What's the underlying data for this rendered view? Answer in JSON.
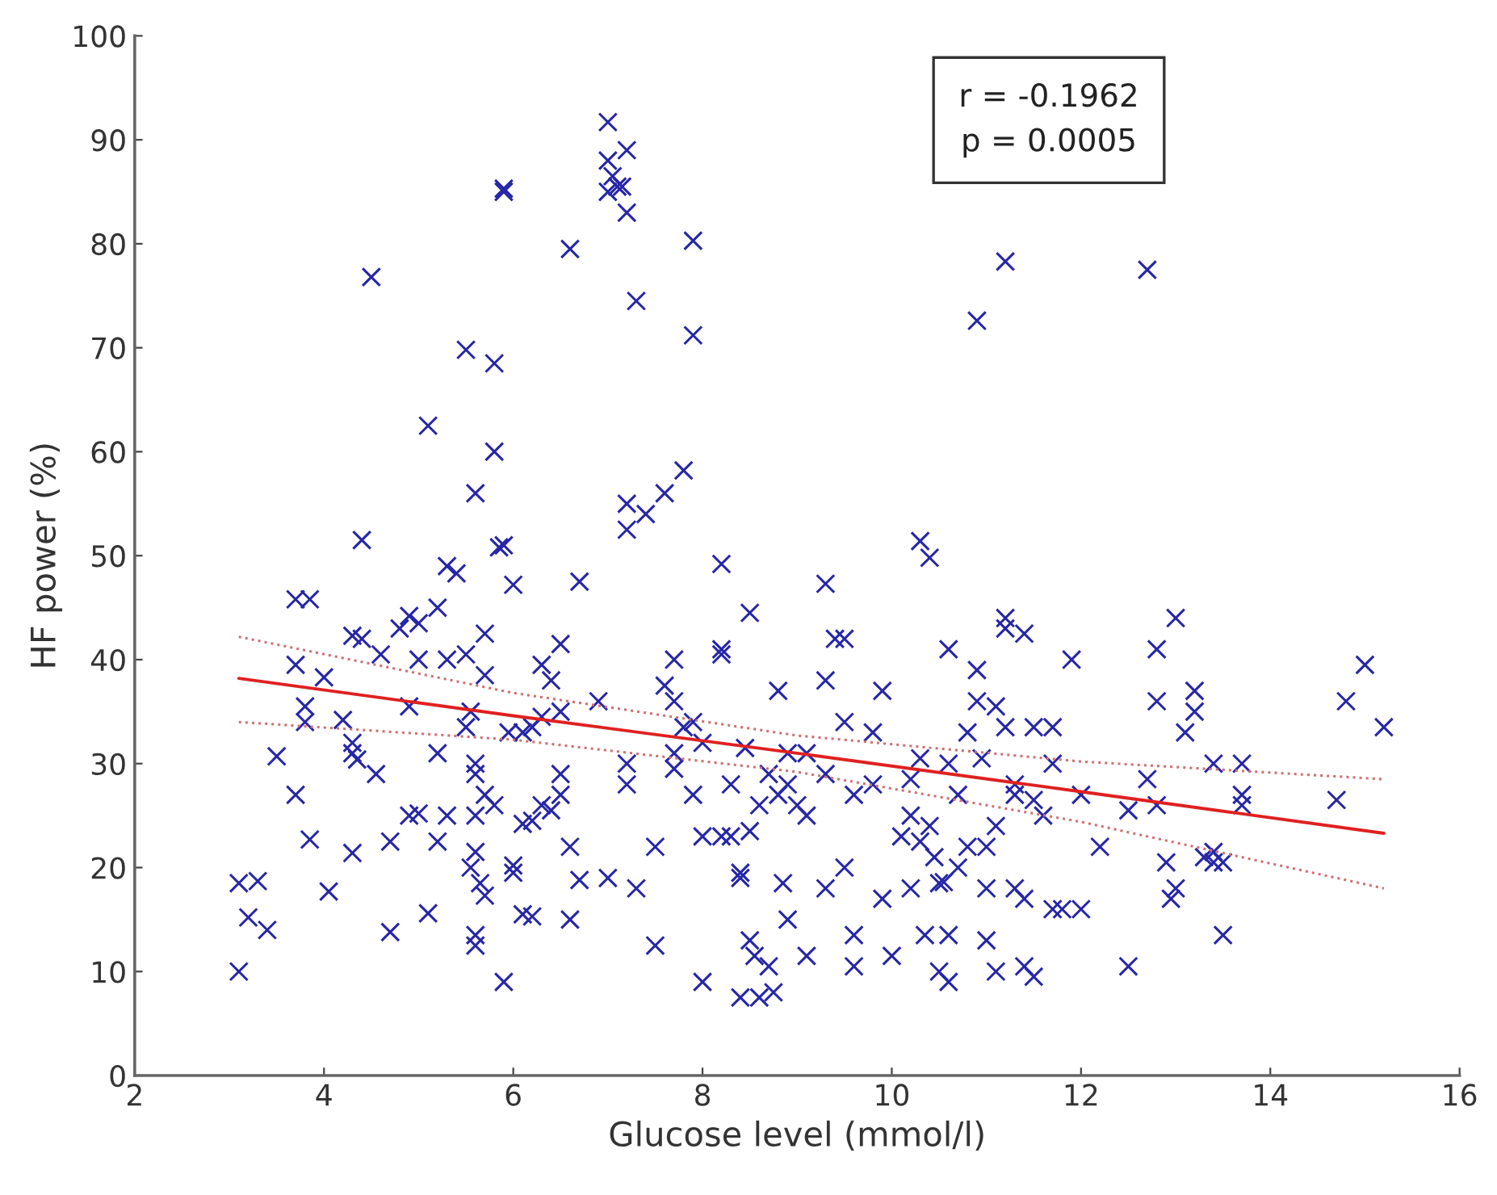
{
  "chart_data": {
    "type": "scatter",
    "xlabel": "Glucose level (mmol/l)",
    "ylabel": "HF power (%)",
    "xlim": [
      2,
      16
    ],
    "xticks": [
      2,
      4,
      6,
      8,
      10,
      12,
      14,
      16
    ],
    "ylim": [
      0,
      100
    ],
    "yticks": [
      0,
      10,
      20,
      30,
      40,
      50,
      60,
      70,
      80,
      90,
      100
    ],
    "grid": false,
    "legend": false,
    "annotations": [
      "r = -0.1962\np = 0.0005"
    ],
    "series": [
      {
        "marker": "cross",
        "color": "#2626a8",
        "x": [
          7.0,
          7.2,
          7.0,
          7.05,
          7.1,
          7.0,
          7.15,
          7.2,
          5.9,
          5.9,
          6.6,
          4.5,
          7.3,
          7.9,
          7.9,
          11.2,
          12.7,
          10.9,
          5.5,
          5.8,
          5.1,
          5.8,
          7.8,
          7.6,
          5.6,
          7.2,
          7.4,
          7.2,
          6.7,
          5.9,
          5.85,
          6.0,
          4.4,
          5.3,
          5.4,
          8.2,
          9.3,
          10.3,
          10.4,
          4.9,
          5.0,
          4.8,
          5.2,
          5.7,
          4.3,
          4.4,
          3.7,
          3.85,
          3.7,
          4.0,
          3.8,
          3.8,
          4.2,
          4.3,
          4.3,
          4.35,
          3.5,
          3.7,
          3.1,
          3.3,
          3.2,
          3.4,
          3.1,
          3.85,
          4.05,
          4.3,
          4.7,
          4.7,
          4.9,
          5.0,
          5.2,
          5.1,
          5.2,
          5.5,
          5.55,
          5.6,
          5.6,
          5.7,
          5.6,
          5.6,
          5.55,
          5.65,
          5.7,
          5.6,
          5.6,
          5.9,
          5.7,
          5.5,
          5.3,
          4.9,
          5.0,
          4.6,
          4.55,
          5.3,
          5.8,
          5.95,
          6.1,
          6.2,
          6.3,
          6.4,
          6.5,
          6.3,
          6.5,
          6.1,
          6.2,
          6.4,
          6.5,
          6.5,
          6.6,
          6.3,
          6.1,
          6.2,
          6.6,
          6.7,
          6.0,
          6.0,
          6.9,
          7.0,
          7.2,
          7.2,
          7.3,
          7.5,
          7.5,
          7.6,
          7.7,
          7.7,
          7.7,
          7.7,
          7.8,
          7.9,
          7.9,
          8.0,
          8.0,
          8.0,
          8.2,
          8.2,
          8.3,
          8.2,
          8.3,
          8.4,
          8.4,
          8.45,
          8.5,
          8.4,
          8.5,
          8.55,
          8.6,
          8.7,
          8.5,
          8.6,
          8.7,
          8.75,
          8.8,
          8.9,
          8.8,
          8.9,
          8.85,
          8.9,
          9.0,
          9.1,
          9.1,
          9.1,
          9.3,
          9.3,
          9.3,
          9.4,
          9.5,
          9.5,
          9.5,
          9.6,
          9.6,
          9.6,
          9.8,
          9.8,
          9.9,
          9.9,
          10.1,
          10.0,
          10.2,
          10.2,
          10.2,
          10.3,
          10.3,
          10.35,
          10.4,
          10.45,
          10.5,
          10.55,
          10.5,
          10.6,
          10.6,
          10.6,
          10.6,
          10.7,
          10.7,
          10.8,
          10.8,
          10.9,
          10.9,
          10.95,
          11.0,
          11.0,
          11.0,
          11.1,
          11.1,
          11.1,
          11.2,
          11.2,
          11.2,
          11.3,
          11.3,
          11.3,
          11.4,
          11.4,
          11.5,
          11.5,
          11.4,
          11.5,
          11.6,
          11.7,
          11.7,
          11.7,
          11.8,
          11.9,
          12.0,
          12.0,
          12.2,
          12.5,
          12.5,
          12.7,
          12.8,
          12.8,
          12.8,
          12.9,
          12.95,
          13.0,
          13.0,
          13.1,
          13.2,
          13.2,
          13.3,
          13.4,
          13.4,
          13.4,
          13.5,
          13.5,
          13.7,
          13.7,
          13.7,
          14.7,
          14.8,
          15.0,
          15.2
        ],
        "values": [
          91.7,
          89,
          88,
          86.5,
          85.5,
          85,
          85.5,
          83,
          85.3,
          85,
          79.5,
          76.8,
          74.5,
          80.3,
          71.2,
          78.3,
          77.5,
          72.6,
          69.8,
          68.5,
          62.5,
          60,
          58.2,
          56,
          56,
          55,
          54,
          52.5,
          47.5,
          51,
          50.8,
          47.2,
          51.5,
          49,
          48.3,
          49.2,
          47.3,
          51.4,
          49.8,
          44.2,
          43.5,
          43,
          45,
          42.5,
          42.3,
          42,
          45.8,
          45.8,
          39.5,
          38.3,
          35.5,
          34,
          34.2,
          32,
          31,
          30.4,
          30.7,
          27,
          18.5,
          18.7,
          15.2,
          14,
          10,
          22.7,
          17.7,
          21.4,
          13.8,
          22.5,
          25,
          25.2,
          22.5,
          15.6,
          31,
          33.5,
          35,
          30,
          29,
          27,
          25,
          21.5,
          20,
          18.5,
          17.3,
          13.5,
          12.5,
          9,
          38.5,
          40.5,
          40,
          35.5,
          40,
          40.5,
          29,
          25,
          26,
          33,
          33,
          33.5,
          39.5,
          38,
          41.5,
          34.5,
          35,
          24.2,
          24.5,
          25.5,
          27,
          29,
          22,
          26,
          15.5,
          15.3,
          15,
          18.8,
          19.5,
          20.2,
          36,
          19,
          28,
          30,
          18,
          22,
          12.5,
          37.5,
          36,
          31,
          29.5,
          40,
          33.5,
          34,
          27,
          32,
          9,
          23,
          41,
          40.5,
          28,
          23,
          23,
          19.5,
          19,
          31.5,
          44.5,
          7.5,
          13,
          11.5,
          7.5,
          10.5,
          23.5,
          26,
          29,
          8,
          37,
          31,
          27,
          15,
          18.5,
          28,
          26,
          25,
          31,
          11.5,
          38,
          29,
          18,
          42,
          42,
          34,
          20,
          27,
          13.5,
          10.5,
          33,
          28,
          17,
          37,
          23,
          11.5,
          28.5,
          18,
          25,
          30.5,
          22.5,
          13.5,
          24,
          21,
          18.5,
          18.6,
          10,
          13.5,
          9,
          41,
          30,
          27,
          20,
          33,
          22,
          39,
          36,
          30.5,
          22,
          18,
          13,
          24,
          10,
          35.5,
          44,
          43,
          33.5,
          27,
          28,
          18,
          17,
          10.5,
          9.5,
          33.5,
          42.5,
          26.5,
          25,
          33.5,
          30,
          16,
          16,
          40,
          27,
          16,
          22,
          25.5,
          10.5,
          28.5,
          41,
          36,
          26,
          20.5,
          17,
          18,
          44,
          33,
          35,
          37,
          21,
          21.5,
          20.5,
          30,
          20.5,
          13.5,
          30,
          27,
          26,
          26.5,
          36,
          39.5,
          33.5
        ]
      },
      {
        "type": "line",
        "marker": "none",
        "color": "#e02020",
        "line_style": "solid",
        "x": [
          3.1,
          6,
          9,
          12,
          15.2
        ],
        "values": [
          38.2,
          34.6,
          31.0,
          27.3,
          23.3
        ]
      },
      {
        "type": "line",
        "marker": "none",
        "color": "#d07070",
        "line_style": "dotted",
        "x": [
          3.1,
          6,
          9,
          12,
          15.2
        ],
        "values": [
          42.2,
          36.8,
          32.7,
          30.2,
          28.5
        ]
      },
      {
        "type": "line",
        "marker": "none",
        "color": "#d07070",
        "line_style": "dotted",
        "x": [
          3.1,
          6,
          9,
          12,
          15.2
        ],
        "values": [
          34.0,
          32.3,
          29.2,
          24.4,
          18.0
        ]
      }
    ]
  }
}
